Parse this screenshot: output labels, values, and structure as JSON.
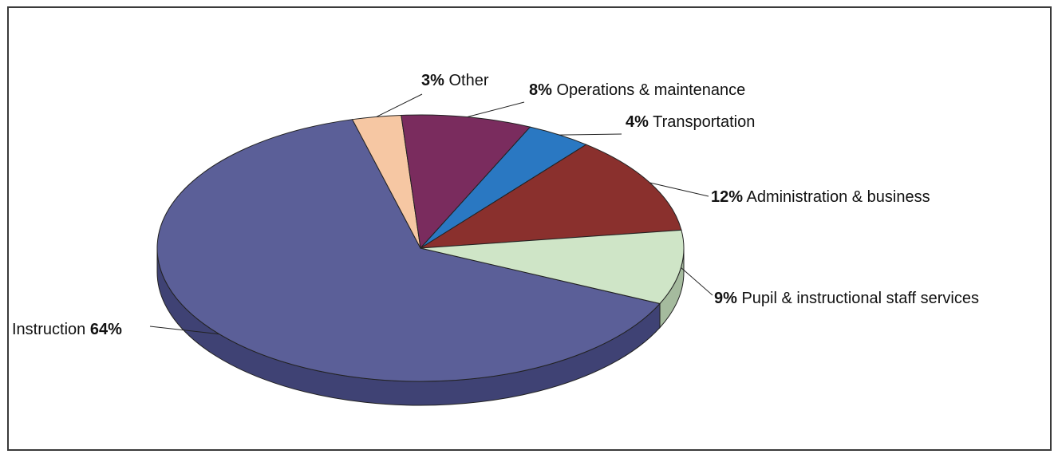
{
  "chart_data": {
    "type": "pie",
    "title": "",
    "slices": [
      {
        "label": "Instruction",
        "value": 64,
        "pct_text": "64%",
        "color": "#5b5f98",
        "side_color": "#3f4274"
      },
      {
        "label": "Other",
        "value": 3,
        "pct_text": "3%",
        "color": "#f6c7a3",
        "side_color": "#c79e80"
      },
      {
        "label": "Operations & maintenance",
        "value": 8,
        "pct_text": "8%",
        "color": "#7a2c5e",
        "side_color": "#561f43"
      },
      {
        "label": "Transportation",
        "value": 4,
        "pct_text": "4%",
        "color": "#2a78c2",
        "side_color": "#1c5891"
      },
      {
        "label": "Administration & business",
        "value": 12,
        "pct_text": "12%",
        "color": "#8a302d",
        "side_color": "#622220"
      },
      {
        "label": "Pupil & instructional staff services",
        "value": 9,
        "pct_text": "9%",
        "color": "#cfe5c7",
        "side_color": "#a5bb9e"
      }
    ],
    "legend": "none",
    "style": "3d-pie"
  }
}
